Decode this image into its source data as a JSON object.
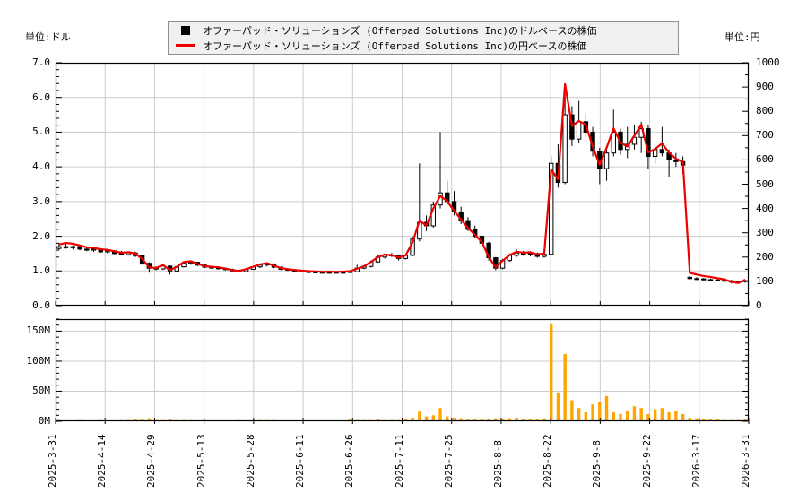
{
  "header": {
    "unit_left": "単位:ドル",
    "unit_right": "単位:円"
  },
  "legend": {
    "items": [
      {
        "marker": "black-square",
        "color": "#000000",
        "label": "オファーパッド・ソリューションズ (Offerpad Solutions Inc)のドルベースの株価"
      },
      {
        "marker": "red-line",
        "color": "#ee0000",
        "label": "オファーパッド・ソリューションズ (Offerpad Solutions Inc)の円ベースの株価"
      }
    ]
  },
  "colors": {
    "jpy_line": "#ee0000",
    "candle_up_fill": "#ffffff",
    "candle_down_fill": "#000000",
    "candle_stroke": "#000000",
    "volume_bar": "#ffa500",
    "grid": "#cccccc",
    "frame": "#000000",
    "legend_bg": "#f0f0f0"
  },
  "chart_data": [
    {
      "type": "candlestick",
      "title": "オファーパッド・ソリューションズ (Offerpad Solutions Inc) 株価 (ドル/円)",
      "grid": true,
      "ylabel_left": "単位:ドル",
      "ylim_left": [
        0,
        7
      ],
      "ytick_labels_left": [
        "0.0",
        "1.0",
        "2.0",
        "3.0",
        "4.0",
        "5.0",
        "6.0",
        "7.0"
      ],
      "ylabel_right": "単位:円",
      "ylim_right": [
        0,
        1000
      ],
      "ytick_labels_right": [
        "0",
        "100",
        "200",
        "300",
        "400",
        "500",
        "600",
        "700",
        "800",
        "900",
        "1000"
      ],
      "x_tick_labels": [
        "2025-3-31",
        "2025-4-14",
        "2025-4-29",
        "2025-5-13",
        "2025-5-28",
        "2025-6-11",
        "2025-6-26",
        "2025-7-11",
        "2025-7-25",
        "2025-8-8",
        "2025-8-22",
        "2025-9-8",
        "2025-9-22",
        "2026-3-17",
        "2026-3-31"
      ],
      "series": [
        {
          "name": "オファーパッド・ソリューションズ (Offerpad Solutions Inc)のドルベースの株価",
          "type": "ohlc-candles",
          "unit": "USD",
          "ohlc": [
            [
              1.65,
              1.8,
              1.6,
              1.7
            ],
            [
              1.7,
              1.78,
              1.64,
              1.67
            ],
            [
              1.67,
              1.74,
              1.62,
              1.7
            ],
            [
              1.7,
              1.73,
              1.6,
              1.63
            ],
            [
              1.63,
              1.68,
              1.57,
              1.6
            ],
            [
              1.6,
              1.67,
              1.55,
              1.63
            ],
            [
              1.63,
              1.65,
              1.52,
              1.55
            ],
            [
              1.55,
              1.62,
              1.5,
              1.58
            ],
            [
              1.58,
              1.6,
              1.48,
              1.5
            ],
            [
              1.5,
              1.58,
              1.45,
              1.47
            ],
            [
              1.47,
              1.55,
              1.44,
              1.52
            ],
            [
              1.52,
              1.56,
              1.4,
              1.44
            ],
            [
              1.44,
              1.47,
              1.18,
              1.22
            ],
            [
              1.22,
              1.25,
              0.95,
              1.08
            ],
            [
              1.08,
              1.13,
              1.02,
              1.06
            ],
            [
              1.06,
              1.18,
              1.03,
              1.14
            ],
            [
              1.14,
              1.16,
              0.9,
              1.0
            ],
            [
              1.0,
              1.14,
              0.98,
              1.12
            ],
            [
              1.12,
              1.26,
              1.1,
              1.22
            ],
            [
              1.22,
              1.3,
              1.18,
              1.25
            ],
            [
              1.25,
              1.27,
              1.14,
              1.17
            ],
            [
              1.17,
              1.2,
              1.08,
              1.11
            ],
            [
              1.11,
              1.15,
              1.06,
              1.09
            ],
            [
              1.09,
              1.13,
              1.04,
              1.07
            ],
            [
              1.07,
              1.1,
              1.01,
              1.04
            ],
            [
              1.04,
              1.07,
              0.97,
              1.0
            ],
            [
              1.0,
              1.05,
              0.95,
              0.98
            ],
            [
              0.98,
              1.08,
              0.96,
              1.05
            ],
            [
              1.05,
              1.15,
              1.03,
              1.12
            ],
            [
              1.12,
              1.2,
              1.08,
              1.17
            ],
            [
              1.17,
              1.24,
              1.13,
              1.2
            ],
            [
              1.2,
              1.22,
              1.08,
              1.11
            ],
            [
              1.11,
              1.13,
              1.02,
              1.05
            ],
            [
              1.05,
              1.08,
              1.0,
              1.02
            ],
            [
              1.02,
              1.05,
              0.98,
              1.0
            ],
            [
              1.0,
              1.03,
              0.96,
              0.98
            ],
            [
              0.98,
              1.01,
              0.95,
              0.97
            ],
            [
              0.97,
              1.0,
              0.94,
              0.96
            ],
            [
              0.96,
              0.99,
              0.93,
              0.95
            ],
            [
              0.95,
              0.98,
              0.92,
              0.96
            ],
            [
              0.96,
              0.99,
              0.93,
              0.95
            ],
            [
              0.95,
              0.98,
              0.92,
              0.96
            ],
            [
              0.96,
              1.0,
              0.94,
              0.98
            ],
            [
              0.98,
              1.18,
              0.96,
              1.08
            ],
            [
              1.08,
              1.16,
              1.05,
              1.13
            ],
            [
              1.13,
              1.3,
              1.1,
              1.26
            ],
            [
              1.26,
              1.45,
              1.24,
              1.4
            ],
            [
              1.4,
              1.5,
              1.36,
              1.46
            ],
            [
              1.46,
              1.52,
              1.4,
              1.44
            ],
            [
              1.44,
              1.47,
              1.3,
              1.36
            ],
            [
              1.36,
              1.48,
              1.33,
              1.45
            ],
            [
              1.45,
              2.0,
              1.42,
              1.92
            ],
            [
              1.92,
              4.1,
              1.85,
              2.4
            ],
            [
              2.4,
              2.6,
              2.15,
              2.3
            ],
            [
              2.3,
              3.0,
              2.25,
              2.9
            ],
            [
              2.9,
              5.0,
              2.8,
              3.25
            ],
            [
              3.25,
              3.6,
              2.9,
              3.0
            ],
            [
              3.0,
              3.3,
              2.6,
              2.7
            ],
            [
              2.7,
              2.85,
              2.35,
              2.45
            ],
            [
              2.45,
              2.55,
              2.15,
              2.2
            ],
            [
              2.2,
              2.3,
              1.95,
              2.0
            ],
            [
              2.0,
              2.06,
              1.75,
              1.8
            ],
            [
              1.8,
              1.84,
              1.3,
              1.38
            ],
            [
              1.38,
              1.4,
              1.02,
              1.08
            ],
            [
              1.08,
              1.35,
              1.05,
              1.3
            ],
            [
              1.3,
              1.5,
              1.27,
              1.45
            ],
            [
              1.45,
              1.62,
              1.4,
              1.52
            ],
            [
              1.52,
              1.58,
              1.44,
              1.48
            ],
            [
              1.48,
              1.55,
              1.42,
              1.5
            ],
            [
              1.5,
              1.53,
              1.38,
              1.42
            ],
            [
              1.42,
              1.52,
              1.38,
              1.48
            ],
            [
              1.48,
              4.3,
              1.45,
              4.1
            ],
            [
              4.1,
              4.65,
              3.4,
              3.55
            ],
            [
              3.55,
              6.3,
              3.5,
              5.5
            ],
            [
              5.5,
              5.75,
              4.6,
              4.8
            ],
            [
              4.8,
              5.9,
              4.7,
              5.3
            ],
            [
              5.3,
              5.55,
              4.85,
              5.0
            ],
            [
              5.0,
              5.15,
              4.3,
              4.45
            ],
            [
              4.45,
              4.55,
              3.5,
              3.95
            ],
            [
              3.95,
              4.5,
              3.6,
              4.4
            ],
            [
              4.4,
              5.65,
              4.3,
              5.0
            ],
            [
              5.0,
              5.1,
              4.35,
              4.5
            ],
            [
              4.5,
              5.15,
              4.25,
              4.65
            ],
            [
              4.65,
              5.2,
              4.5,
              4.85
            ],
            [
              4.85,
              5.3,
              4.4,
              5.1
            ],
            [
              5.1,
              5.2,
              3.95,
              4.3
            ],
            [
              4.3,
              4.55,
              4.1,
              4.5
            ],
            [
              4.5,
              5.15,
              4.3,
              4.4
            ],
            [
              4.4,
              4.5,
              3.7,
              4.2
            ],
            [
              4.2,
              4.4,
              4.0,
              4.15
            ],
            [
              4.15,
              4.3,
              3.8,
              4.05
            ],
            [
              0.82,
              0.85,
              0.75,
              0.78
            ],
            [
              0.78,
              0.82,
              0.74,
              0.77
            ],
            [
              0.77,
              0.8,
              0.73,
              0.75
            ],
            [
              0.75,
              0.78,
              0.71,
              0.74
            ],
            [
              0.74,
              0.77,
              0.7,
              0.73
            ],
            [
              0.73,
              0.76,
              0.69,
              0.72
            ],
            [
              0.72,
              0.74,
              0.64,
              0.68
            ],
            [
              0.68,
              0.72,
              0.63,
              0.7
            ],
            [
              0.7,
              0.74,
              0.66,
              0.72
            ]
          ]
        },
        {
          "name": "オファーパッド・ソリューションズ (Offerpad Solutions Inc)の円ベースの株価",
          "type": "line",
          "unit": "JPY",
          "color": "#ee0000",
          "values": [
            252,
            258,
            255,
            248,
            240,
            238,
            232,
            230,
            224,
            218,
            220,
            215,
            192,
            158,
            155,
            168,
            146,
            160,
            180,
            183,
            172,
            163,
            160,
            158,
            153,
            146,
            143,
            150,
            160,
            170,
            175,
            165,
            155,
            150,
            147,
            144,
            142,
            141,
            139,
            140,
            139,
            140,
            142,
            152,
            162,
            180,
            200,
            210,
            208,
            198,
            207,
            260,
            350,
            330,
            400,
            452,
            430,
            390,
            355,
            320,
            292,
            262,
            200,
            158,
            185,
            208,
            222,
            218,
            220,
            210,
            215,
            560,
            520,
            912,
            740,
            760,
            745,
            655,
            580,
            650,
            730,
            672,
            655,
            700,
            745,
            630,
            645,
            668,
            630,
            605,
            592,
            135,
            128,
            122,
            118,
            113,
            108,
            98,
            93,
            107
          ]
        }
      ]
    },
    {
      "type": "bar",
      "name": "出来高 (Volume)",
      "color": "#ffa500",
      "ylim": [
        0,
        170
      ],
      "ytick_labels": [
        "0M",
        "50M",
        "100M",
        "150M"
      ],
      "ytick_values": [
        0,
        50,
        100,
        150
      ],
      "values_millions": [
        2,
        1,
        1,
        2,
        1,
        1,
        2,
        1,
        1,
        2,
        2,
        3,
        4,
        5,
        2,
        2,
        3,
        2,
        2,
        2,
        1,
        2,
        1,
        1,
        1,
        1,
        2,
        1,
        2,
        2,
        2,
        2,
        1,
        1,
        1,
        1,
        1,
        1,
        1,
        1,
        1,
        1,
        3,
        2,
        2,
        2,
        3,
        2,
        2,
        2,
        3,
        6,
        16,
        8,
        10,
        22,
        8,
        6,
        5,
        4,
        4,
        3,
        4,
        5,
        4,
        5,
        6,
        4,
        4,
        3,
        5,
        163,
        48,
        112,
        35,
        22,
        15,
        28,
        32,
        42,
        15,
        12,
        18,
        25,
        22,
        12,
        20,
        22,
        15,
        18,
        12,
        6,
        5,
        4,
        3,
        3,
        2,
        2,
        2,
        3
      ]
    }
  ]
}
